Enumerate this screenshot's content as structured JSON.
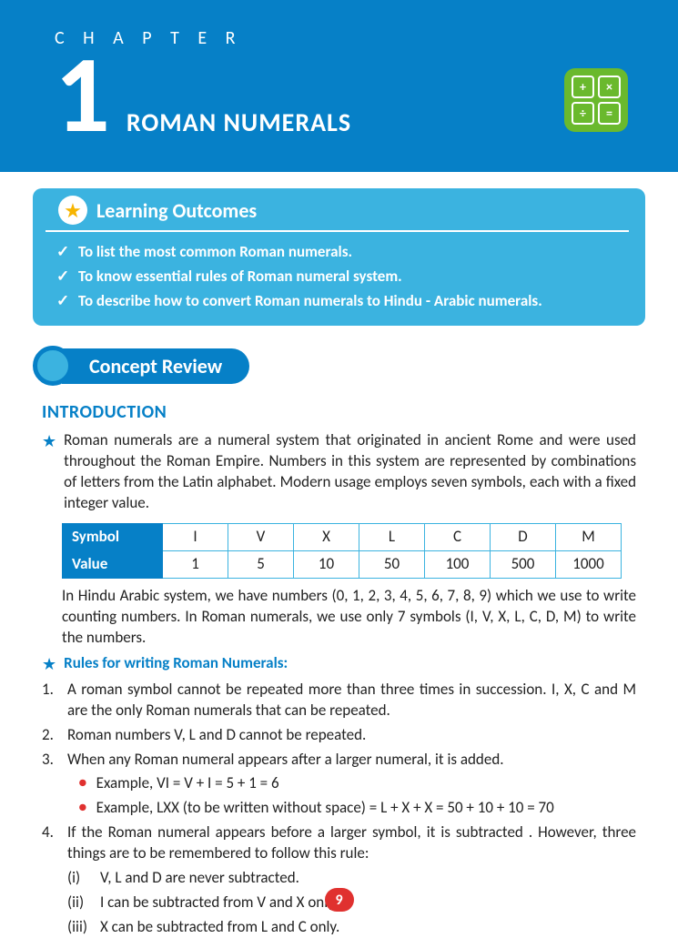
{
  "header": {
    "chapter_label": "C H A P T E R",
    "chapter_number": "1",
    "title": "ROMAN NUMERALS"
  },
  "outcomes": {
    "title": "Learning Outcomes",
    "items": [
      "To list the most common Roman numerals.",
      "To know essential rules of Roman numeral system.",
      "To describe how to convert Roman numerals to Hindu - Arabic numerals."
    ]
  },
  "concept_review": {
    "title": "Concept Review"
  },
  "intro": {
    "heading": "INTRODUCTION",
    "para1": "Roman numerals are a numeral system that originated in ancient Rome and were used throughout the Roman Empire. Numbers in this system are represented by combinations of letters from the Latin alphabet. Modern usage employs seven symbols, each with a fixed integer value.",
    "para2": "In Hindu Arabic system, we have numbers (0, 1, 2, 3, 4, 5, 6, 7, 8, 9) which we use to write counting numbers. In Roman numerals, we use only 7 symbols (I, V, X, L, C, D, M) to write the numbers."
  },
  "table": {
    "row_labels": [
      "Symbol",
      "Value"
    ],
    "symbols": [
      "I",
      "V",
      "X",
      "L",
      "C",
      "D",
      "M"
    ],
    "values": [
      "1",
      "5",
      "10",
      "50",
      "100",
      "500",
      "1000"
    ]
  },
  "rules": {
    "title": "Rules for writing Roman Numerals:",
    "items": [
      "A roman symbol cannot be repeated more than three times in succession. I, X, C and M are the only Roman numerals that can be repeated.",
      "Roman numbers V, L and D cannot be repeated.",
      "When any Roman numeral appears after a larger numeral, it is added.",
      "If the Roman numeral appears before a larger symbol, it is subtracted . However, three things are to be remembered to follow this rule:"
    ],
    "examples": [
      "Example, VI = V + I = 5 + 1 = 6",
      "Example, LXX (to be written without space) = L + X + X = 50 + 10 + 10 = 70"
    ],
    "subs": [
      "V, L and D are never subtracted.",
      "I can be subtracted from V and X only.",
      "X can be subtracted from L and C only."
    ]
  },
  "page_number": "9",
  "colors": {
    "primary": "#0680c7",
    "secondary": "#3bb3e0",
    "accent_green": "#6ab92d",
    "accent_red": "#e0312f",
    "star_gold": "#f7b500"
  }
}
